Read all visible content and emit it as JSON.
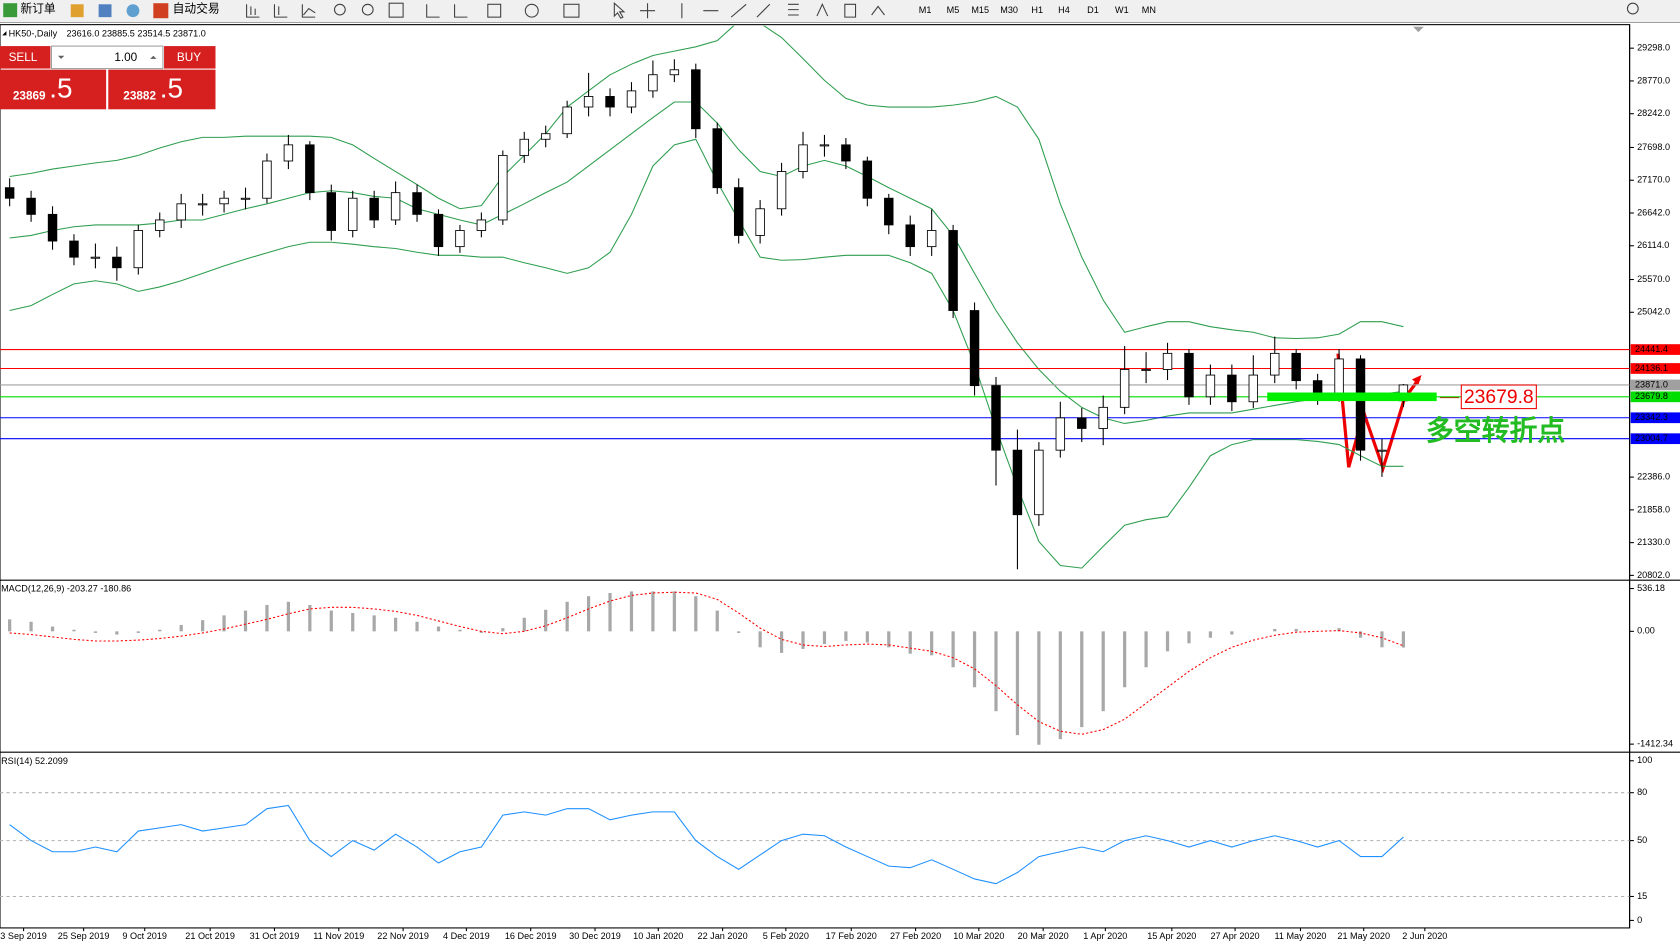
{
  "toolbar": {
    "new_order": "新订单",
    "auto_trading": "自动交易",
    "timeframes": [
      "M1",
      "M5",
      "M15",
      "M30",
      "H1",
      "H4",
      "D1",
      "W1",
      "MN"
    ]
  },
  "trade_panel": {
    "sell": "SELL",
    "buy": "BUY",
    "lot": "1.00",
    "sell_price": "23869",
    "sell_pips": ".5",
    "buy_price": "23882",
    "buy_pips": ".5"
  },
  "chart_data": [
    {
      "type": "candlestick",
      "title": "HK50-,Daily",
      "subtitle": "23616.0 23885.5 23514.5 23871.0",
      "xlim": [
        -0.45,
        75.55
      ],
      "ylim": [
        20750,
        29660
      ],
      "xticks": [
        {
          "value": 0.65,
          "label": "3 Sep 2019"
        },
        {
          "value": 3.45,
          "label": "25 Sep 2019"
        },
        {
          "value": 6.3,
          "label": "9 Oct 2019"
        },
        {
          "value": 9.35,
          "label": "21 Oct 2019"
        },
        {
          "value": 12.35,
          "label": "31 Oct 2019"
        },
        {
          "value": 15.35,
          "label": "11 Nov 2019"
        },
        {
          "value": 18.35,
          "label": "22 Nov 2019"
        },
        {
          "value": 21.3,
          "label": "4 Dec 2019"
        },
        {
          "value": 24.3,
          "label": "16 Dec 2019"
        },
        {
          "value": 27.3,
          "label": "30 Dec 2019"
        },
        {
          "value": 30.25,
          "label": "10 Jan 2020"
        },
        {
          "value": 33.25,
          "label": "22 Jan 2020"
        },
        {
          "value": 36.2,
          "label": "5 Feb 2020"
        },
        {
          "value": 39.25,
          "label": "17 Feb 2020"
        },
        {
          "value": 42.25,
          "label": "27 Feb 2020"
        },
        {
          "value": 45.2,
          "label": "10 Mar 2020"
        },
        {
          "value": 48.2,
          "label": "20 Mar 2020"
        },
        {
          "value": 51.1,
          "label": "1 Apr 2020"
        },
        {
          "value": 54.2,
          "label": "15 Apr 2020"
        },
        {
          "value": 57.15,
          "label": "27 Apr 2020"
        },
        {
          "value": 60.2,
          "label": "11 May 2020"
        },
        {
          "value": 63.15,
          "label": "21 May 2020"
        },
        {
          "value": 66,
          "label": "2 Jun 2020"
        }
      ],
      "yticks": [
        {
          "value": 29298,
          "label": "29298.0"
        },
        {
          "value": 28770,
          "label": "28770.0"
        },
        {
          "value": 28242,
          "label": "28242.0"
        },
        {
          "value": 27698,
          "label": "27698.0"
        },
        {
          "value": 27170,
          "label": "27170.0"
        },
        {
          "value": 26642,
          "label": "26642.0"
        },
        {
          "value": 26114,
          "label": "26114.0"
        },
        {
          "value": 25570,
          "label": "25570.0"
        },
        {
          "value": 25042,
          "label": "25042.0"
        },
        {
          "value": 22386,
          "label": "22386.0"
        },
        {
          "value": 21858,
          "label": "21858.0"
        },
        {
          "value": 21330,
          "label": "21330.0"
        },
        {
          "value": 20802,
          "label": "20802.0"
        }
      ],
      "open": [
        27050,
        26880,
        26620,
        26190,
        25930,
        25930,
        25760,
        26360,
        26530,
        26790,
        26790,
        26880,
        26880,
        27480,
        27740,
        26970,
        26360,
        26880,
        26530,
        26970,
        26620,
        26100,
        26360,
        26530,
        27570,
        27830,
        27920,
        28350,
        28520,
        28350,
        28610,
        28870,
        28950,
        28000,
        27050,
        26280,
        26710,
        27310,
        27740,
        27740,
        27480,
        26880,
        26450,
        26100,
        26360,
        25070,
        23860,
        22820,
        21780,
        22820,
        23340,
        23170,
        23510,
        24120,
        24120,
        24380,
        23680,
        24030,
        23600,
        24030,
        24380,
        23940,
        23680,
        24290,
        22820,
        23616
      ],
      "high": [
        27200,
        27000,
        26750,
        26300,
        26150,
        26100,
        26450,
        26650,
        26950,
        26950,
        27000,
        27050,
        27600,
        27900,
        27800,
        27100,
        27000,
        27000,
        27150,
        27100,
        26700,
        26450,
        26650,
        27650,
        27950,
        28050,
        28450,
        28900,
        28650,
        28750,
        29100,
        29120,
        29050,
        28100,
        27200,
        26850,
        27450,
        27950,
        27900,
        27850,
        27550,
        26950,
        26600,
        26700,
        26450,
        25200,
        24000,
        23150,
        22950,
        23600,
        23500,
        23700,
        24500,
        24400,
        24550,
        24450,
        24200,
        24200,
        24350,
        24650,
        24450,
        24050,
        24450,
        24350,
        23000,
        23885.5
      ],
      "low": [
        26750,
        26500,
        26050,
        25800,
        25750,
        25550,
        25650,
        26250,
        26400,
        26600,
        26650,
        26700,
        26800,
        27350,
        26850,
        26200,
        26250,
        26400,
        26450,
        26500,
        25950,
        26000,
        26250,
        26450,
        27450,
        27700,
        27850,
        28200,
        28200,
        28250,
        28500,
        28750,
        27850,
        26950,
        26150,
        26150,
        26600,
        27200,
        27550,
        27350,
        26750,
        26300,
        25950,
        25950,
        24950,
        23700,
        22250,
        20900,
        21600,
        22700,
        22950,
        22900,
        23400,
        23900,
        23950,
        23550,
        23550,
        23450,
        23500,
        23900,
        23800,
        23550,
        23600,
        22650,
        22390,
        23514.5
      ],
      "close": [
        26880,
        26620,
        26190,
        25930,
        25930,
        25760,
        26360,
        26530,
        26790,
        26790,
        26880,
        26880,
        27480,
        27740,
        26970,
        26360,
        26880,
        26530,
        26970,
        26620,
        26100,
        26360,
        26530,
        27570,
        27830,
        27920,
        28350,
        28520,
        28350,
        28610,
        28870,
        28950,
        28000,
        27050,
        26280,
        26710,
        27310,
        27740,
        27740,
        27480,
        26880,
        26450,
        26100,
        26360,
        25070,
        23860,
        22820,
        21780,
        22820,
        23340,
        23170,
        23510,
        24120,
        24120,
        24380,
        23680,
        24030,
        23600,
        24030,
        24380,
        23940,
        23680,
        24290,
        22820,
        22820,
        23871
      ],
      "bollinger": {
        "color": "#2e9e4f",
        "upper": [
          27230,
          27280,
          27350,
          27400,
          27450,
          27490,
          27570,
          27690,
          27790,
          27860,
          27860,
          27880,
          27880,
          27880,
          27880,
          27860,
          27740,
          27520,
          27310,
          27100,
          26880,
          26710,
          26760,
          27230,
          27570,
          27920,
          28350,
          28610,
          28870,
          29040,
          29180,
          29250,
          29320,
          29420,
          29730,
          29700,
          29470,
          29130,
          28780,
          28490,
          28380,
          28350,
          28350,
          28350,
          28380,
          28430,
          28520,
          28350,
          27830,
          26790,
          25930,
          25240,
          24720,
          24810,
          24890,
          24890,
          24810,
          24760,
          24720,
          24630,
          24620,
          24630,
          24690,
          24890,
          24890,
          24810
        ],
        "middle": [
          26240,
          26280,
          26360,
          26420,
          26450,
          26450,
          26450,
          26480,
          26530,
          26530,
          26620,
          26710,
          26790,
          26880,
          26970,
          27000,
          26970,
          26910,
          26880,
          26710,
          26620,
          26530,
          26450,
          26620,
          26790,
          26970,
          27140,
          27400,
          27660,
          27920,
          28180,
          28430,
          28430,
          28090,
          27660,
          27310,
          27230,
          27400,
          27490,
          27400,
          27230,
          27050,
          26880,
          26710,
          26280,
          25670,
          25070,
          24550,
          24120,
          23770,
          23510,
          23340,
          23250,
          23300,
          23370,
          23420,
          23420,
          23420,
          23480,
          23540,
          23600,
          23650,
          23650,
          23650,
          23720,
          23770
        ],
        "lower": [
          25070,
          25150,
          25330,
          25500,
          25550,
          25500,
          25380,
          25450,
          25550,
          25670,
          25790,
          25900,
          26000,
          26100,
          26170,
          26170,
          26140,
          26100,
          26070,
          26010,
          25960,
          25960,
          25930,
          25930,
          25840,
          25760,
          25670,
          25760,
          26010,
          26620,
          27400,
          27740,
          27830,
          27140,
          26530,
          25930,
          25880,
          25890,
          25930,
          25960,
          25960,
          25960,
          25840,
          25670,
          25070,
          24200,
          23170,
          22220,
          21350,
          20960,
          20920,
          21270,
          21610,
          21700,
          21750,
          22220,
          22730,
          22910,
          22990,
          22990,
          22990,
          22960,
          22910,
          22730,
          22560,
          22560
        ]
      },
      "hlines": [
        {
          "value": 24441.4,
          "color": "#ff0000"
        },
        {
          "value": 24136.1,
          "color": "#ff0000"
        },
        {
          "value": 23871,
          "label": "23871.0",
          "color": "#a0a0a0"
        },
        {
          "value": 23679.8,
          "color": "#00dd00"
        },
        {
          "value": 23342.3,
          "color": "#0000ff"
        },
        {
          "value": 23004.7,
          "color": "#0000ff"
        }
      ],
      "annotation": "多空转折点"
    },
    {
      "type": "macd",
      "title": "MACD(12,26,9) -203.27 -180.86",
      "xlim": [
        -0.45,
        75.55
      ],
      "ylim": [
        -1500,
        620
      ],
      "yticks": [
        536.18,
        {
          "value": 0,
          "label": "0.00"
        },
        -1412.34
      ],
      "histogram": {
        "color": "#a8a8a8",
        "values": [
          150,
          120,
          60,
          20,
          -20,
          -40,
          -20,
          20,
          80,
          140,
          200,
          260,
          330,
          370,
          330,
          260,
          230,
          200,
          170,
          120,
          60,
          20,
          -20,
          40,
          170,
          270,
          370,
          440,
          480,
          500,
          500,
          500,
          440,
          260,
          -20,
          -200,
          -270,
          -220,
          -160,
          -120,
          -140,
          -200,
          -280,
          -300,
          -450,
          -700,
          -1000,
          -1300,
          -1420,
          -1350,
          -1200,
          -1000,
          -700,
          -450,
          -250,
          -150,
          -80,
          -40,
          0,
          30,
          30,
          0,
          40,
          -80,
          -200,
          -203.27
        ]
      },
      "signal": {
        "color": "#ff0000",
        "values": [
          -20,
          -40,
          -70,
          -100,
          -120,
          -120,
          -110,
          -90,
          -60,
          -20,
          30,
          90,
          150,
          220,
          280,
          300,
          300,
          280,
          250,
          200,
          130,
          60,
          0,
          -30,
          0,
          70,
          170,
          280,
          380,
          450,
          480,
          490,
          480,
          400,
          230,
          40,
          -100,
          -170,
          -190,
          -170,
          -160,
          -170,
          -210,
          -250,
          -330,
          -470,
          -680,
          -920,
          -1130,
          -1250,
          -1290,
          -1230,
          -1100,
          -900,
          -700,
          -500,
          -330,
          -200,
          -110,
          -50,
          -10,
          0,
          10,
          -20,
          -80,
          -180.86
        ]
      }
    },
    {
      "type": "rsi",
      "title": "RSI(14) 52.2099",
      "xlim": [
        -0.45,
        75.55
      ],
      "ylim": [
        -4.7,
        104.7
      ],
      "yticks": [
        100,
        80,
        50,
        15,
        0
      ],
      "levels": [
        80,
        50,
        15
      ],
      "color": "#1e90ff",
      "values": [
        60,
        50,
        43,
        43,
        46,
        43,
        56,
        58,
        60,
        56,
        58,
        60,
        70,
        72,
        50,
        40,
        50,
        44,
        54,
        46,
        36,
        43,
        46,
        66,
        68,
        66,
        70,
        70,
        63,
        66,
        68,
        68,
        50,
        40,
        32,
        41,
        50,
        54,
        53,
        46,
        40,
        34,
        33,
        38,
        32,
        26,
        23,
        30,
        40,
        43,
        46,
        43,
        50,
        53,
        50,
        46,
        50,
        46,
        50,
        53,
        50,
        46,
        50,
        40,
        40,
        52.2099
      ]
    }
  ]
}
